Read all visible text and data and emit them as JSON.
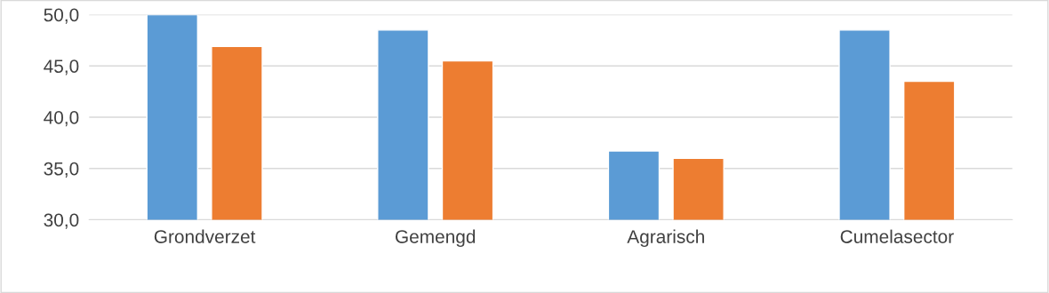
{
  "chart_data": {
    "type": "bar",
    "categories": [
      "Grondverzet",
      "Gemengd",
      "Agrarisch",
      "Cumelasector"
    ],
    "series": [
      {
        "color": "#5b9bd5",
        "values": [
          50.0,
          48.5,
          36.7,
          48.5
        ]
      },
      {
        "color": "#ed7d31",
        "values": [
          46.9,
          45.5,
          36.0,
          43.5
        ]
      }
    ],
    "ylim": [
      30,
      50
    ],
    "yticks": [
      {
        "value": 30,
        "label": "30,0"
      },
      {
        "value": 35,
        "label": "35,0"
      },
      {
        "value": 40,
        "label": "40,0"
      },
      {
        "value": 45,
        "label": "45,0"
      },
      {
        "value": 50,
        "label": "50,0"
      }
    ],
    "grid": "y"
  }
}
